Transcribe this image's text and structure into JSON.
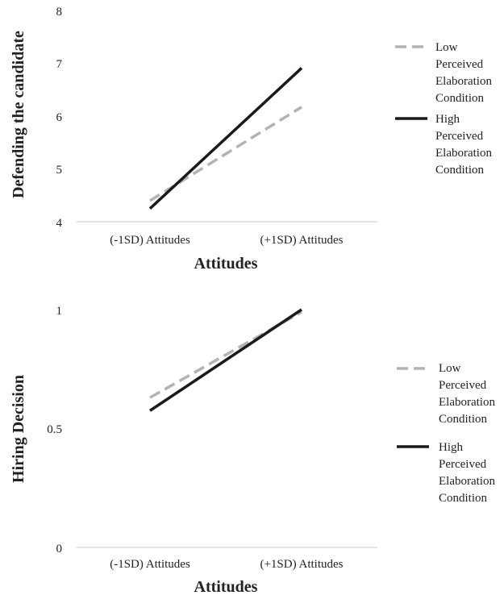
{
  "colors": {
    "low": "#b3b3b3",
    "high": "#1a1a1a",
    "axis": "#c8c8c8"
  },
  "chart_data": [
    {
      "type": "line",
      "categories": [
        "(-1SD) Attitudes",
        "(+1SD) Attitudes"
      ],
      "xlabel": "Attitudes",
      "ylabel": "Defending the candidate",
      "ylim": [
        4,
        8
      ],
      "yticks": [
        "4",
        "5",
        "6",
        "7",
        "8"
      ],
      "grid": false,
      "legend_position": "right",
      "series": [
        {
          "name": "Low Perceived Elaboration Condition",
          "style": "dashed",
          "values": [
            4.4,
            6.18
          ]
        },
        {
          "name": "High Perceived Elaboration Condition",
          "style": "solid",
          "values": [
            4.25,
            6.92
          ]
        }
      ]
    },
    {
      "type": "line",
      "categories": [
        "(-1SD) Attitudes",
        "(+1SD) Attitudes"
      ],
      "xlabel": "Attitudes",
      "ylabel": "Hiring Decision",
      "ylim": [
        0,
        1
      ],
      "yticks": [
        "0",
        "0.5",
        "1"
      ],
      "grid": false,
      "legend_position": "right",
      "series": [
        {
          "name": "Low Perceived Elaboration Condition",
          "style": "dashed",
          "values": [
            0.63,
            0.99
          ]
        },
        {
          "name": "High Perceived Elaboration Condition",
          "style": "solid",
          "values": [
            0.575,
            1.0
          ]
        }
      ]
    }
  ]
}
